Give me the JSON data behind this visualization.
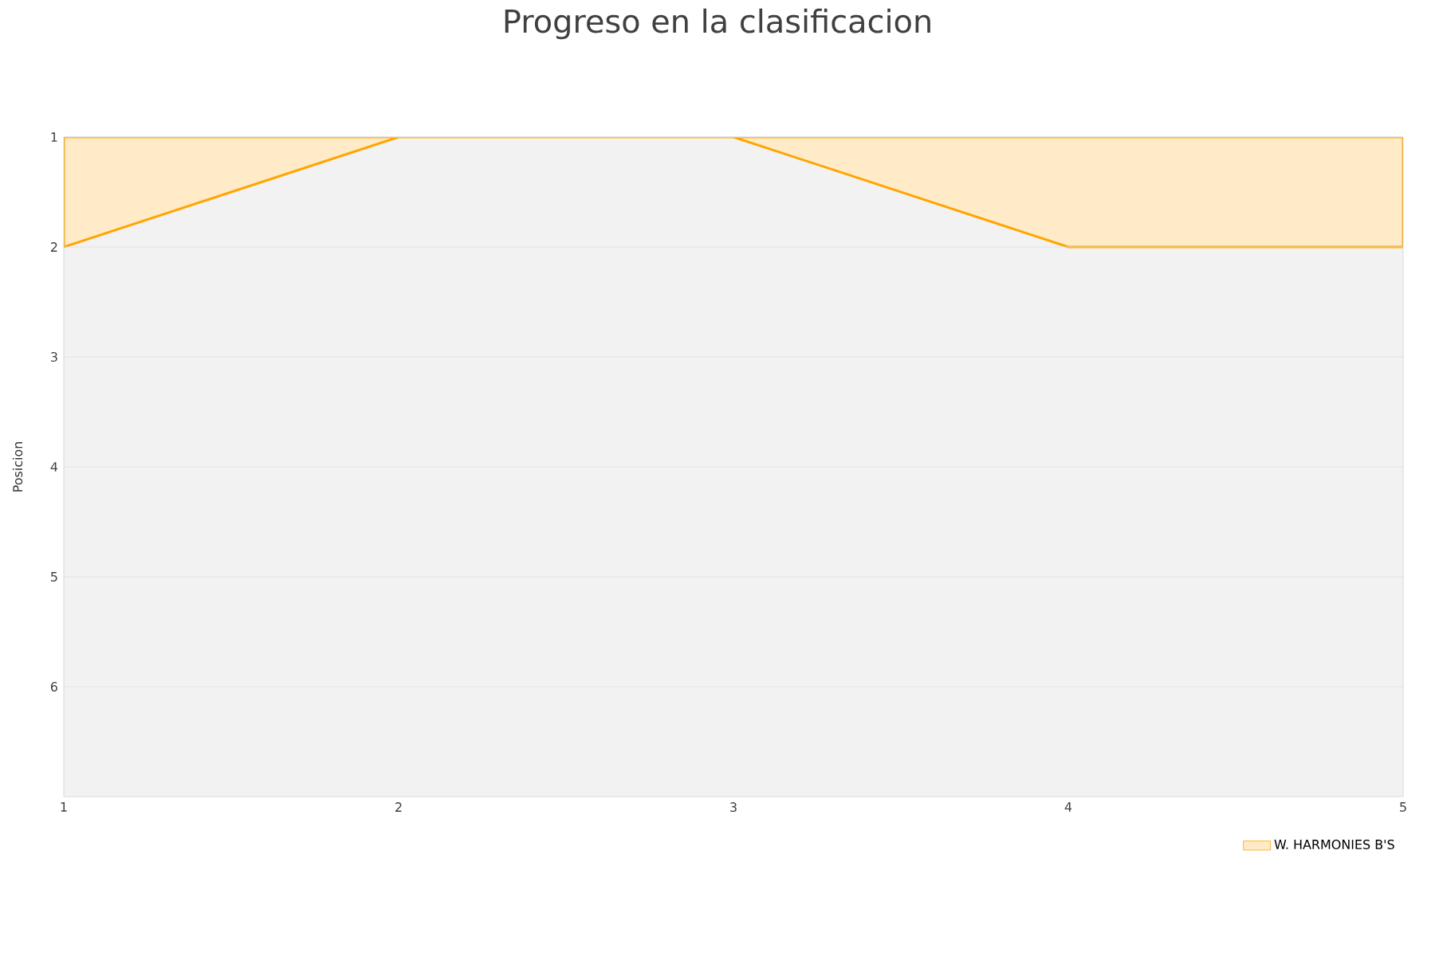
{
  "chart_data": {
    "type": "area",
    "title": "Progreso en la clasificacion",
    "ylabel": "Posicion",
    "x": [
      1,
      2,
      3,
      4,
      5
    ],
    "series": [
      {
        "name": "W. HARMONIES B'S",
        "color": "#ffa500",
        "values": [
          2,
          1,
          1,
          2,
          2
        ]
      }
    ],
    "xlim": [
      1,
      5
    ],
    "ylim": [
      7,
      1
    ],
    "xticks": [
      1,
      2,
      3,
      4,
      5
    ],
    "yticks": [
      1,
      2,
      3,
      4,
      5,
      6
    ],
    "grid": "y",
    "legend": "bottom right"
  }
}
